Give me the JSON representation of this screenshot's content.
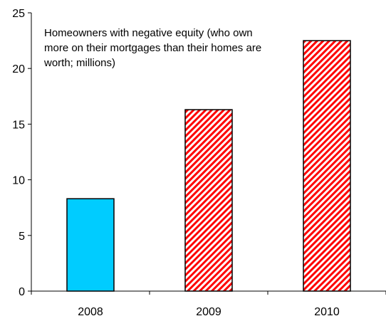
{
  "chart_data": {
    "type": "bar",
    "categories": [
      "2008",
      "2009",
      "2010"
    ],
    "values": [
      8.3,
      16.3,
      22.5
    ],
    "bar_styles": [
      "solid",
      "hatched",
      "hatched"
    ],
    "ylim": [
      0,
      25
    ],
    "yticks": [
      0,
      5,
      10,
      15,
      20,
      25
    ],
    "annotation": "Homeowners with negative equity (who own more on their mortgages than their homes are worth; millions)",
    "grid": false,
    "legend": "none",
    "colors": {
      "solid_fill": "#00CCFF",
      "hatch_color": "#FF0000",
      "hatch_background": "#FFFFFF",
      "axis": "#000000",
      "bar_border": "#000000"
    }
  }
}
